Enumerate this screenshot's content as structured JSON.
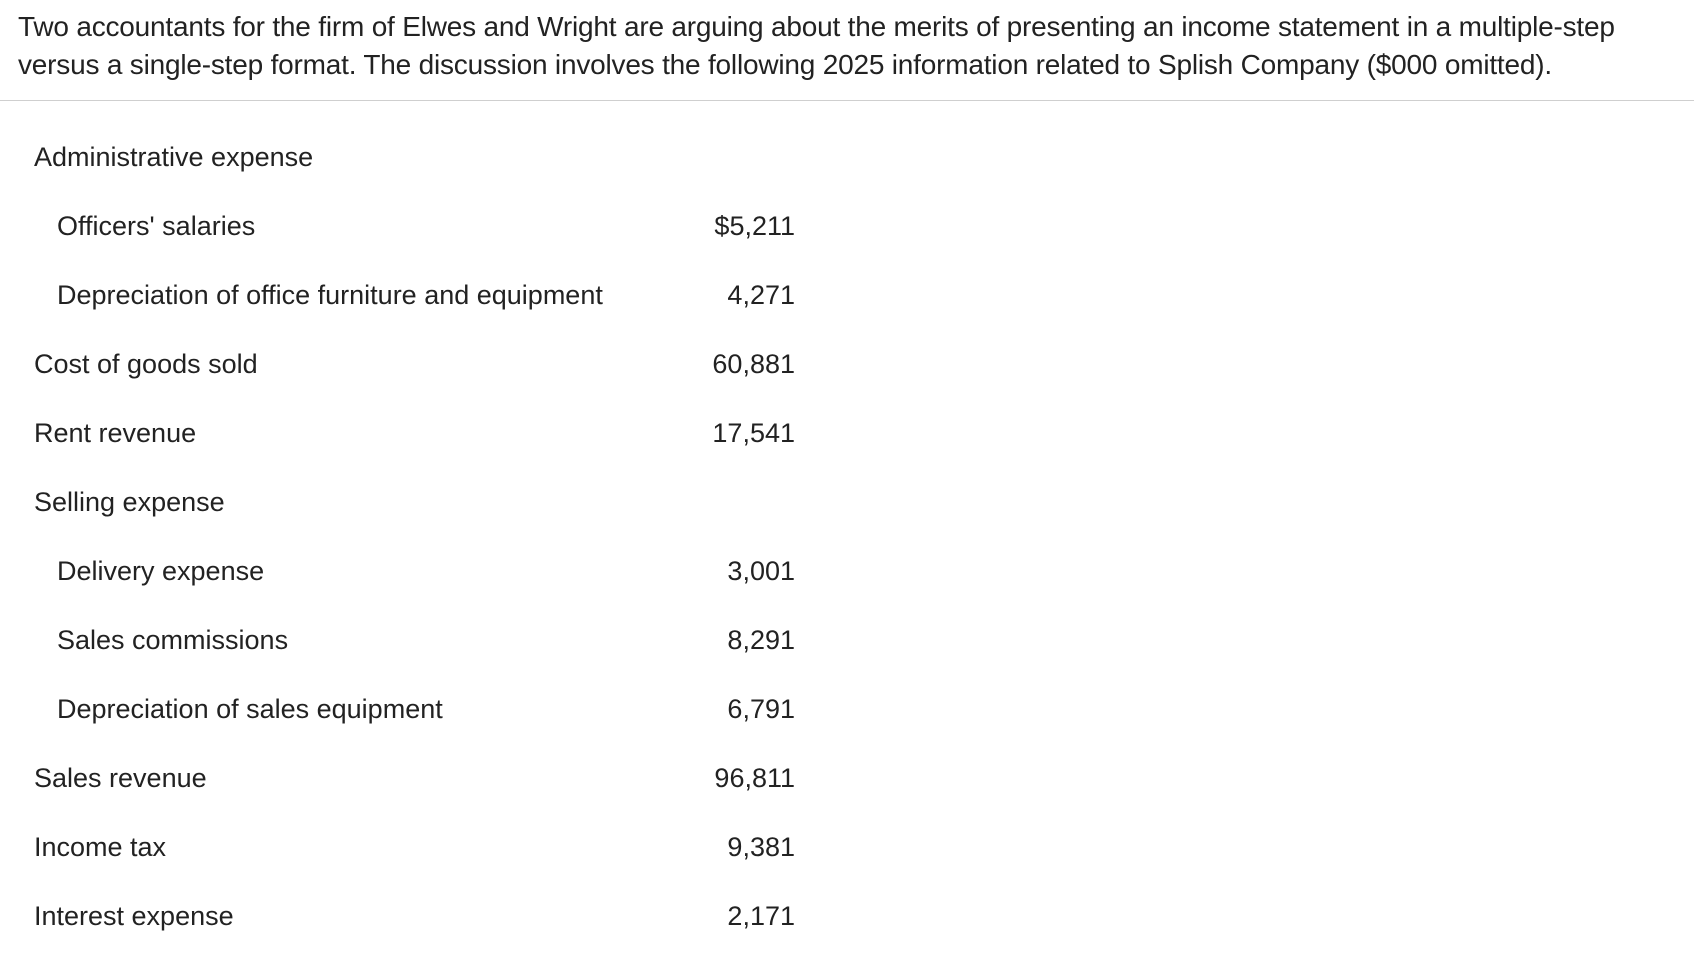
{
  "intro": "Two accountants for the firm of Elwes and Wright are arguing about the merits of presenting an income statement in a multiple-step versus a single-step format. The discussion involves the following 2025 information related to Splish Company ($000 omitted).",
  "rows": [
    {
      "label": "Administrative expense",
      "value": ""
    },
    {
      "label": "Officers' salaries",
      "value": "$5,211"
    },
    {
      "label": "Depreciation of office furniture and equipment",
      "value": "4,271"
    },
    {
      "label": "Cost of goods sold",
      "value": "60,881"
    },
    {
      "label": "Rent revenue",
      "value": "17,541"
    },
    {
      "label": "Selling expense",
      "value": ""
    },
    {
      "label": "Delivery expense",
      "value": "3,001"
    },
    {
      "label": "Sales commissions",
      "value": "8,291"
    },
    {
      "label": "Depreciation of sales equipment",
      "value": "6,791"
    },
    {
      "label": "Sales revenue",
      "value": "96,811"
    },
    {
      "label": "Income tax",
      "value": "9,381"
    },
    {
      "label": "Interest expense",
      "value": "2,171"
    }
  ]
}
